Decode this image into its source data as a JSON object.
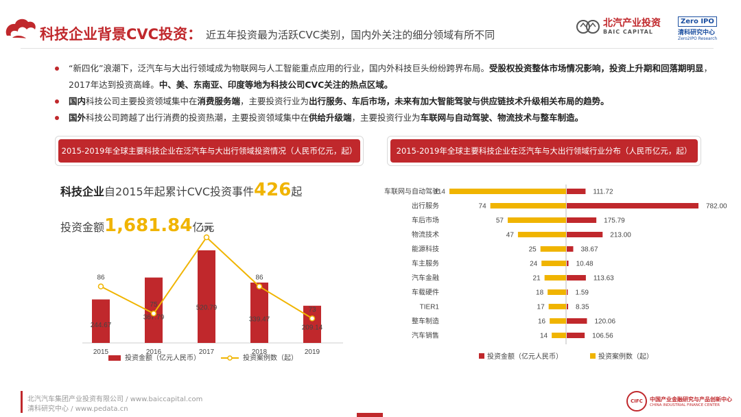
{
  "header": {
    "title": "科技企业背景CVC投资：",
    "subtitle": "近五年投资最为活跃CVC类别，国内外关注的细分领域有所不同",
    "brand_cn": "北汽产业投资",
    "brand_en": "BAIC CAPITAL",
    "zero_box": "Zero IPO",
    "zero_cn": "清科研究中心",
    "zero_en": "Zero2IPO Research"
  },
  "bullets": [
    {
      "segments": [
        {
          "text": "“新四化”浪潮下，泛汽车与大出行领域成为物联网与人工智能重点应用的行业，国内外科技巨头纷纷跨界布局。",
          "bold": false
        },
        {
          "text": "受股权投资整体市场情况影响，投资上升期和回落期明显",
          "bold": true
        },
        {
          "text": "，2017年达到投资高峰。",
          "bold": false
        },
        {
          "text": "中、美、东南亚、印度等地为科技公司CVC关注的热点区域。",
          "bold": true
        }
      ]
    },
    {
      "segments": [
        {
          "text": "国内",
          "bold": true
        },
        {
          "text": "科技公司主要投资领域集中在",
          "bold": false
        },
        {
          "text": "消费服务端",
          "bold": true
        },
        {
          "text": "，主要投资行业为",
          "bold": false
        },
        {
          "text": "出行服务、车后市场，未来有加大智能驾驶与供应链技术升级相关布局的趋势。",
          "bold": true
        }
      ]
    },
    {
      "segments": [
        {
          "text": "国外",
          "bold": true
        },
        {
          "text": "科技公司跨越了出行消费的投资热潮，主要投资领域集中在",
          "bold": false
        },
        {
          "text": "供给升级端",
          "bold": true
        },
        {
          "text": "，主要投资行业为",
          "bold": false
        },
        {
          "text": "车联网与自动驾驶、物流技术与整车制造。",
          "bold": true
        }
      ]
    }
  ],
  "left_section": {
    "header": "2015-2019年全球主要科技企业在泛汽车与大出行领域投资情况（人民币亿元，起）",
    "stat1_pre": "科技企业",
    "stat1_mid": "自2015年起累计CVC投资事件",
    "stat1_num": "426",
    "stat1_post": "起",
    "stat2_pre": "投资金额",
    "stat2_num": "1,681.84",
    "stat2_post": "亿元"
  },
  "right_section": {
    "header": "2015-2019年全球主要科技企业在泛汽车与大出行领域行业分布（人民币亿元，起）"
  },
  "footer": {
    "line1": "北汽汽车集团产业投资有限公司 / www.baiccapital.com",
    "line2": "清科研究中心 / www.pedata.cn",
    "logo_circle": "CIFC",
    "logo_cn": "中国产业金融研究与产品创新中心",
    "logo_en": "CHINA INDUSTRIAL FINANCE CENTER"
  },
  "colors": {
    "red": "#c0282c",
    "yellow": "#f0b400"
  },
  "chart_data": [
    {
      "type": "bar",
      "categories": [
        "2015",
        "2016",
        "2017",
        "2018",
        "2019"
      ],
      "series": [
        {
          "name": "投资金额（亿元人民币）",
          "type": "bar",
          "values": [
            244.67,
            367.79,
            520.79,
            339.47,
            209.14
          ]
        },
        {
          "name": "投资案例数（起）",
          "type": "line",
          "values": [
            86,
            75,
            106,
            86,
            73
          ]
        }
      ]
    },
    {
      "type": "bar",
      "orientation": "horizontal",
      "categories": [
        "车联网与自动驾驶",
        "出行服务",
        "车后市场",
        "物流技术",
        "能源科技",
        "车主服务",
        "汽车金融",
        "车载硬件",
        "TIER1",
        "整车制造",
        "汽车销售"
      ],
      "series": [
        {
          "name": "投资金额（亿元人民币）",
          "values": [
            111.72,
            782.0,
            175.79,
            213.0,
            38.67,
            10.48,
            113.63,
            1.59,
            8.35,
            120.06,
            106.56
          ],
          "labels": [
            "111.72",
            "782.00",
            "175.79",
            "213.00",
            "38.67",
            "10.48",
            "113.63",
            "1.59",
            "8.35",
            "120.06",
            "106.56"
          ]
        },
        {
          "name": "投资案例数（起）",
          "values": [
            114,
            74,
            57,
            47,
            25,
            24,
            21,
            18,
            17,
            16,
            14
          ]
        }
      ]
    }
  ]
}
